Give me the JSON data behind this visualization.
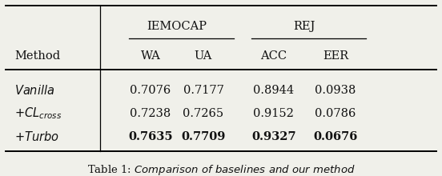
{
  "title": "Table 1: Comparison of baselines and our method",
  "col_headers_top": [
    "IEMOCAP",
    "REJ"
  ],
  "col_headers_sub": [
    "Method",
    "WA",
    "UA",
    "ACC",
    "EER"
  ],
  "rows": [
    [
      "Vanilla",
      "0.7076",
      "0.7177",
      "0.8944",
      "0.0938"
    ],
    [
      "+CL_{cross}",
      "0.7238",
      "0.7265",
      "0.9152",
      "0.0786"
    ],
    [
      "+Turbo",
      "0.7635",
      "0.7709",
      "0.9327",
      "0.0676"
    ]
  ],
  "bold_rows": [
    2
  ],
  "background_color": "#f0f0ea",
  "text_color": "#111111"
}
